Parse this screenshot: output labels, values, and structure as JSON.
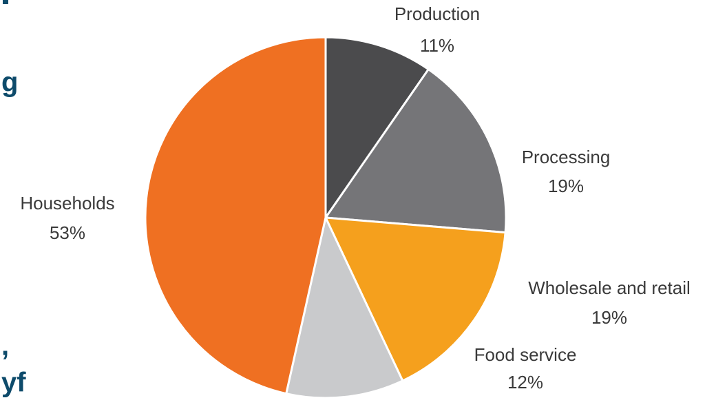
{
  "chart_data": {
    "type": "pie",
    "categories": [
      "Production",
      "Processing",
      "Wholesale and retail",
      "Food service",
      "Households"
    ],
    "values": [
      11,
      19,
      19,
      12,
      53
    ],
    "value_labels": [
      "11%",
      "19%",
      "19%",
      "12%",
      "53%"
    ],
    "colors": [
      "#4b4b4d",
      "#757578",
      "#f5a01d",
      "#c9cacc",
      "#ef7022"
    ]
  },
  "side_text": [
    "g",
    ",",
    "yf"
  ]
}
